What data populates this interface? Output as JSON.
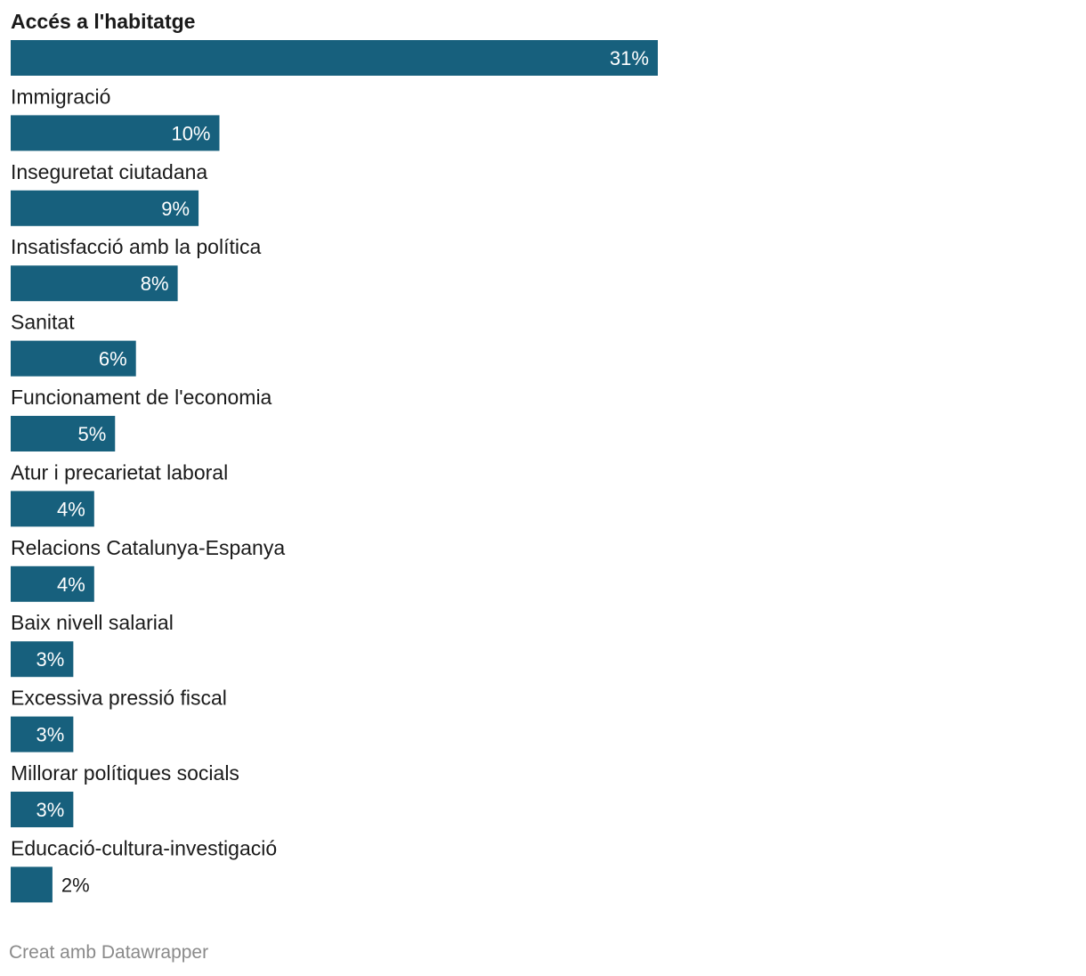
{
  "chart_data": {
    "type": "bar",
    "orientation": "horizontal",
    "categories": [
      "Accés a l'habitatge",
      "Immigració",
      "Inseguretat ciutadana",
      "Insatisfacció amb la política",
      "Sanitat",
      "Funcionament de l'economia",
      "Atur i precarietat laboral",
      "Relacions Catalunya-Espanya",
      "Baix nivell salarial",
      "Excessiva pressió fiscal",
      "Millorar polítiques socials",
      "Educació-cultura-investigació"
    ],
    "values": [
      31,
      10,
      9,
      8,
      6,
      5,
      4,
      4,
      3,
      3,
      3,
      2
    ],
    "value_suffix": "%",
    "highlight_category": "Accés a l'habitatge",
    "bar_color": "#17607d",
    "label_inside_color": "#ffffff",
    "label_outside_color": "#1a1a1a",
    "xlim": [
      0,
      51
    ],
    "grid": false,
    "legend": "none"
  },
  "footer": {
    "credit": "Creat amb Datawrapper"
  }
}
